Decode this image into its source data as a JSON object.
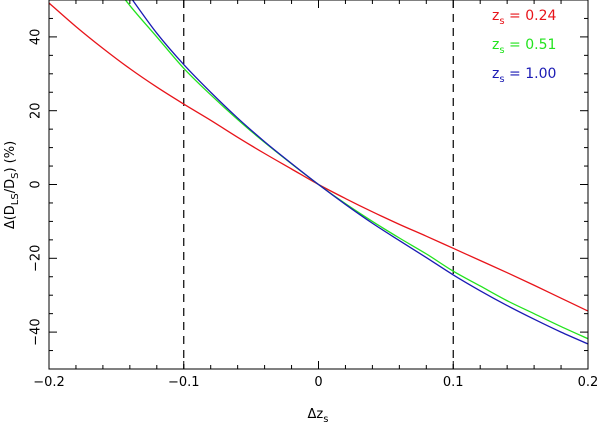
{
  "chart_data": {
    "type": "line",
    "title": "",
    "xlabel": "Δz_s",
    "ylabel": "Δ(D_LS/D_S) (%)",
    "xlim": [
      -0.2,
      0.2
    ],
    "ylim": [
      -50,
      50
    ],
    "xticks": [
      -0.2,
      -0.1,
      0,
      0.1,
      0.2
    ],
    "xtick_labels": [
      "−0.2",
      "−0.1",
      "0",
      "0.1",
      "0.2"
    ],
    "yticks": [
      -40,
      -20,
      0,
      20,
      40
    ],
    "ytick_labels": [
      "−40",
      "−20",
      "0",
      "20",
      "40"
    ],
    "grid": false,
    "legend_position": "top-right",
    "reference_lines": [
      {
        "axis": "x",
        "value": -0.1,
        "style": "dashed",
        "color": "#000000"
      },
      {
        "axis": "x",
        "value": 0.1,
        "style": "dashed",
        "color": "#000000"
      }
    ],
    "x": [
      -0.2,
      -0.18,
      -0.16,
      -0.14,
      -0.12,
      -0.1,
      -0.08,
      -0.06,
      -0.04,
      -0.02,
      0,
      0.02,
      0.04,
      0.06,
      0.08,
      0.1,
      0.12,
      0.14,
      0.16,
      0.18,
      0.2
    ],
    "series": [
      {
        "name": "z_s = 0.24",
        "legend_sub": "s",
        "legend_value": "= 0.24",
        "color": "#e8141a",
        "values": [
          49.2,
          42.8,
          36.9,
          31.4,
          26.4,
          21.8,
          17.4,
          12.8,
          8.4,
          4.2,
          0.0,
          -3.8,
          -7.4,
          -10.8,
          -14.0,
          -17.3,
          -20.6,
          -23.9,
          -27.3,
          -30.8,
          -34.3
        ]
      },
      {
        "name": "z_s = 0.51",
        "legend_sub": "s",
        "legend_value": "= 0.51",
        "color": "#22e31e",
        "values": [
          null,
          null,
          58.0,
          48.5,
          40.0,
          31.5,
          24.3,
          17.6,
          11.4,
          5.6,
          0.0,
          -5.2,
          -10.0,
          -14.5,
          -18.8,
          -23.5,
          -27.5,
          -31.5,
          -35.0,
          -38.5,
          -41.8
        ]
      },
      {
        "name": "z_s = 1.00",
        "legend_sub": "s",
        "legend_value": "= 1.00",
        "color": "#1a1ab4",
        "values": [
          null,
          null,
          61.0,
          51.0,
          41.0,
          32.5,
          25.0,
          18.0,
          11.6,
          5.7,
          0.0,
          -5.4,
          -10.5,
          -15.2,
          -19.8,
          -24.5,
          -28.8,
          -32.8,
          -36.5,
          -40.0,
          -43.2
        ]
      }
    ]
  }
}
